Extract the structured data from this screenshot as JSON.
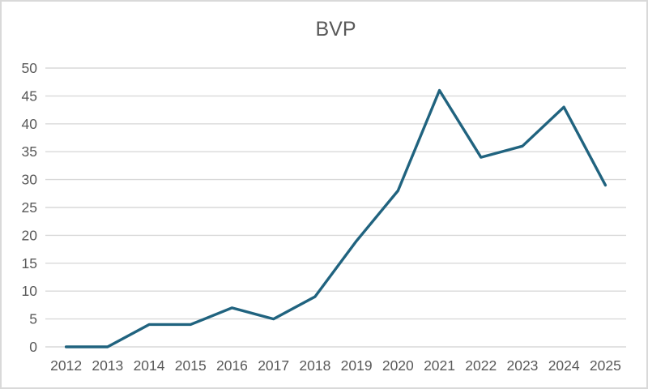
{
  "chart_data": {
    "type": "line",
    "title": "BVP",
    "categories": [
      "2012",
      "2013",
      "2014",
      "2015",
      "2016",
      "2017",
      "2018",
      "2019",
      "2020",
      "2021",
      "2022",
      "2023",
      "2024",
      "2025"
    ],
    "series": [
      {
        "name": "BVP",
        "values": [
          0,
          0,
          4,
          4,
          7,
          5,
          9,
          19,
          28,
          46,
          34,
          36,
          43,
          29
        ]
      }
    ],
    "xlabel": "",
    "ylabel": "",
    "ylim": [
      0,
      50
    ],
    "ytick_step": 5,
    "ytick_labels": [
      "0",
      "5",
      "10",
      "15",
      "20",
      "25",
      "30",
      "35",
      "40",
      "45",
      "50"
    ],
    "grid": true,
    "legend_position": "none",
    "colors": {
      "line": "#20637F",
      "gridline": "#D9D9D9",
      "tick_label": "#595959",
      "title": "#595959",
      "frame_border": "#D9D9D9",
      "background": "#FFFFFF"
    }
  }
}
